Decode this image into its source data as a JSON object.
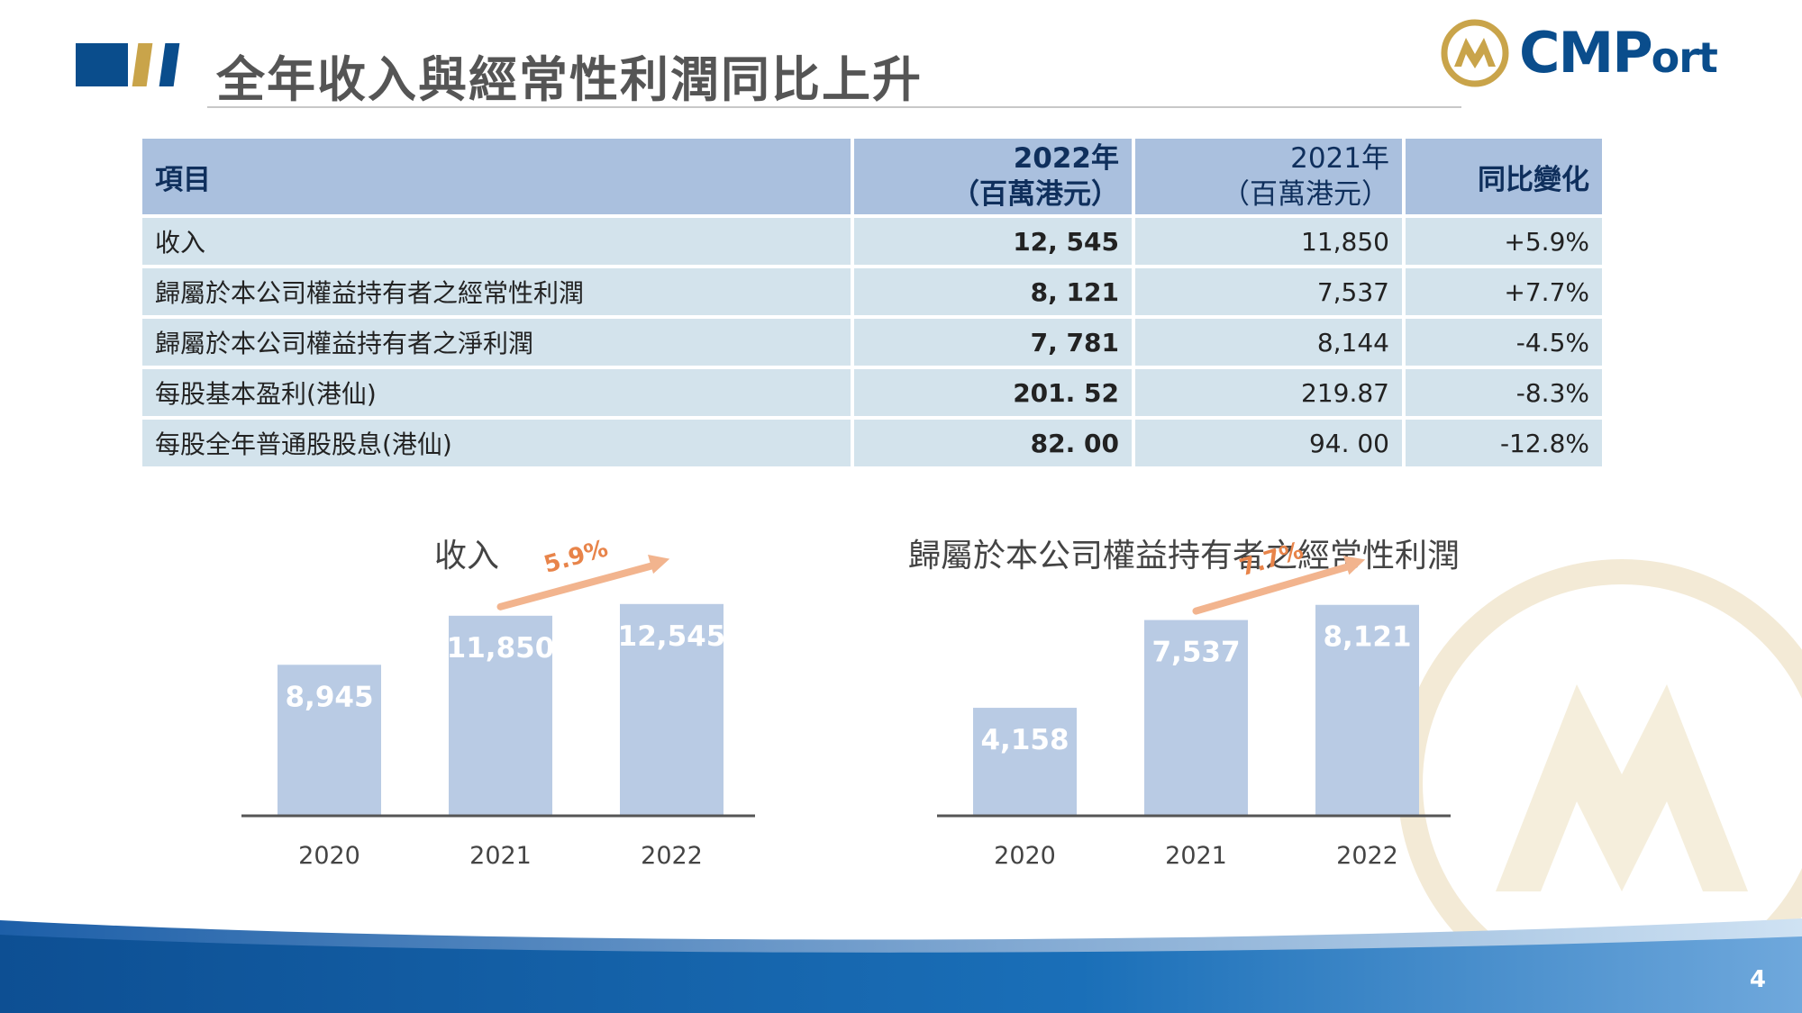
{
  "page": {
    "title": "全年收入與經常性利潤同比上升",
    "page_number": "4"
  },
  "logo": {
    "text_big": "CMP",
    "text_small": "ort"
  },
  "table": {
    "headers": {
      "item": "項目",
      "y2022_line1": "2022年",
      "y2022_line2": "（百萬港元）",
      "y2021_line1": "2021年",
      "y2021_line2": "（百萬港元）",
      "change": "同比變化"
    },
    "rows": [
      {
        "item": "收入",
        "y2022": "12, 545",
        "y2021": "11,850",
        "change": "+5.9%"
      },
      {
        "item": "歸屬於本公司權益持有者之經常性利潤",
        "y2022": "8, 121",
        "y2021": "7,537",
        "change": "+7.7%"
      },
      {
        "item": "歸屬於本公司權益持有者之淨利潤",
        "y2022": "7, 781",
        "y2021": "8,144",
        "change": "-4.5%"
      },
      {
        "item": "每股基本盈利(港仙)",
        "y2022": "201. 52",
        "y2021": "219.87",
        "change": "-8.3%"
      },
      {
        "item": "每股全年普通股股息(港仙)",
        "y2022": "82. 00",
        "y2021": "94. 00",
        "change": "-12.8%"
      }
    ]
  },
  "chart_data": [
    {
      "type": "bar",
      "title": "收入",
      "categories": [
        "2020",
        "2021",
        "2022"
      ],
      "values": [
        8945,
        11850,
        12545
      ],
      "value_labels": [
        "8,945",
        "11,850",
        "12,545"
      ],
      "growth_label": "5.9%",
      "ylim": [
        0,
        16000
      ],
      "grid": false,
      "colors": {
        "bar": "#b9cbe4",
        "growth": "#e8844a"
      }
    },
    {
      "type": "bar",
      "title": "歸屬於本公司權益持有者之經常性利潤",
      "categories": [
        "2020",
        "2021",
        "2022"
      ],
      "values": [
        4158,
        7537,
        8121
      ],
      "value_labels": [
        "4,158",
        "7,537",
        "8,121"
      ],
      "growth_label": "7.7%",
      "ylim": [
        0,
        10400
      ],
      "grid": false,
      "colors": {
        "bar": "#b9cbe4",
        "growth": "#e8844a"
      }
    }
  ],
  "colors": {
    "brand_blue": "#0a4d8c",
    "brand_gold": "#c9a44a",
    "table_header": "#aac0de",
    "table_body": "#d3e3ec"
  }
}
